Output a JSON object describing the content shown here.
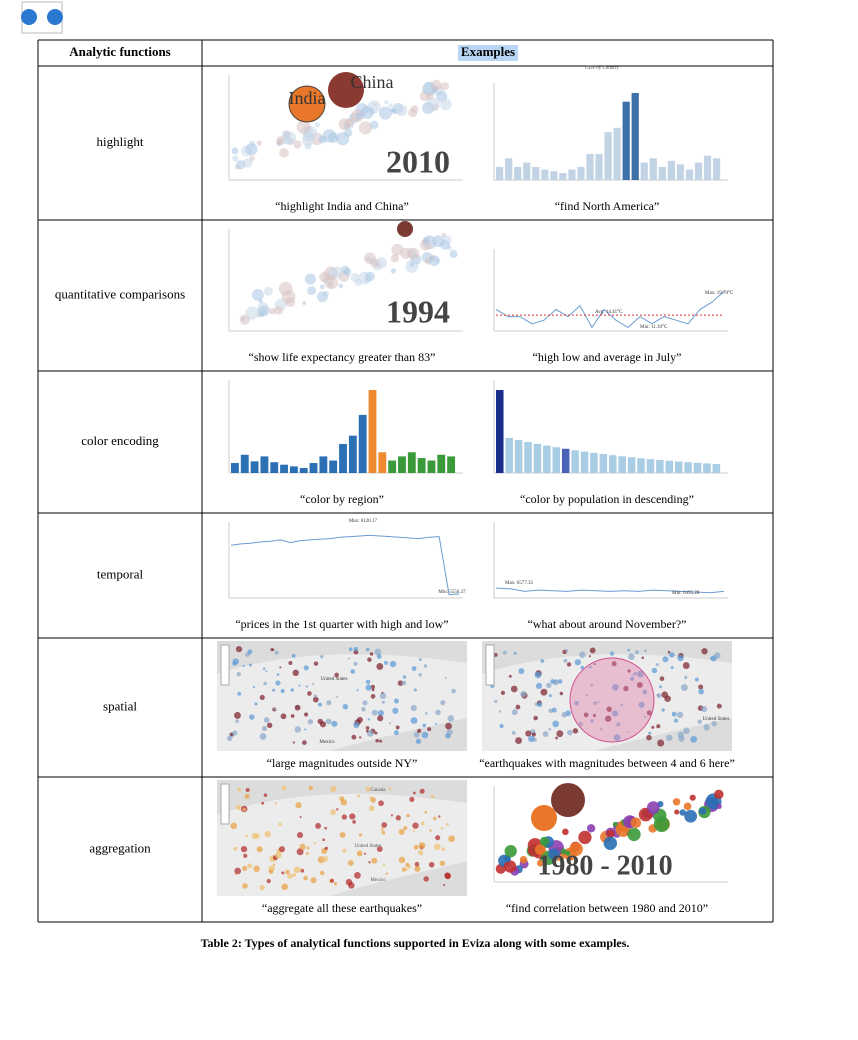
{
  "table": {
    "headers": [
      "Analytic functions",
      "Examples"
    ],
    "rows": [
      {
        "function": "highlight",
        "examples": [
          {
            "caption": "“highlight India and China”",
            "labels": [
              "India",
              "China",
              "2010"
            ]
          },
          {
            "caption": "“find North America”",
            "labels": [
              "GDP by Country"
            ]
          }
        ]
      },
      {
        "function": "quantitative comparisons",
        "examples": [
          {
            "caption": "“show life expectancy greater than 83”",
            "labels": [
              "1994"
            ]
          },
          {
            "caption": "“high low and average in July”",
            "labels": [
              "Max: 19.70°C",
              "Avg: 14.41°C",
              "Min: 11.10°C"
            ]
          }
        ]
      },
      {
        "function": "color encoding",
        "examples": [
          {
            "caption": "“color by region”",
            "labels": []
          },
          {
            "caption": "“color by population in descending”",
            "labels": []
          }
        ]
      },
      {
        "function": "temporal",
        "examples": [
          {
            "caption": "“prices in the 1st quarter with high and low”",
            "labels": [
              "Max: 6120.17",
              "Min: 5556.37"
            ]
          },
          {
            "caption": "“what about around November?”",
            "labels": [
              "Max: 6577.35",
              "Min: 6495.28"
            ]
          }
        ]
      },
      {
        "function": "spatial",
        "examples": [
          {
            "caption": "“large magnitudes outside NY”",
            "labels": [
              "United States",
              "Mexico"
            ]
          },
          {
            "caption": "“earthquakes with magnitudes between 4 and 6 here”",
            "labels": [
              "United States"
            ]
          }
        ]
      },
      {
        "function": "aggregation",
        "examples": [
          {
            "caption": "“aggregate all these earthquakes”",
            "labels": [
              "Canada",
              "United States",
              "Mexico"
            ]
          },
          {
            "caption": "“find correlation between 1980 and 2010”",
            "labels": [
              "1980 - 2010"
            ]
          }
        ]
      }
    ]
  },
  "caption": "Table 2: Types of analytical functions supported in Eviza along with some examples."
}
